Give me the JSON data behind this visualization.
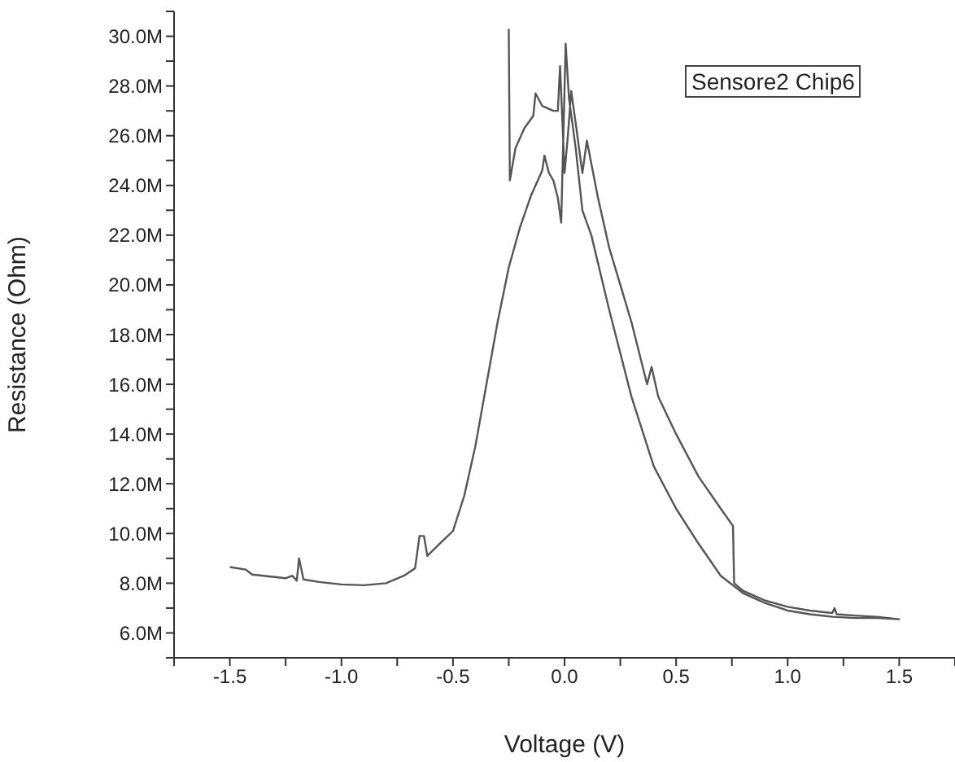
{
  "chart_data": {
    "type": "line",
    "xlabel": "Voltage (V)",
    "ylabel": "Resistance (Ohm)",
    "annotations": [
      "Sensore2 Chip6"
    ],
    "xlim": [
      -1.75,
      1.75
    ],
    "xticks": [
      {
        "value": -1.75,
        "label": null
      },
      -1.5,
      {
        "value": -1.25,
        "label": null
      },
      {
        "value": -1.0,
        "label": "-1.0"
      },
      {
        "value": -0.75,
        "label": null
      },
      -0.5,
      {
        "value": -0.25,
        "label": null
      },
      {
        "value": 0,
        "label": "0.0"
      },
      {
        "value": 0.25,
        "label": null
      },
      0.5,
      {
        "value": 0.75,
        "label": null
      },
      {
        "value": 1.0,
        "label": "1.0"
      },
      {
        "value": 1.25,
        "label": null
      },
      1.5,
      {
        "value": 1.75,
        "label": null
      }
    ],
    "ylim": [
      5000000,
      31000000
    ],
    "yticks": [
      {
        "value": 5000000,
        "label": null
      },
      {
        "value": 6000000,
        "label": "6.0M"
      },
      {
        "value": 7000000,
        "label": null
      },
      {
        "value": 8000000,
        "label": "8.0M"
      },
      {
        "value": 9000000,
        "label": null
      },
      {
        "value": 10000000,
        "label": "10.0M"
      },
      {
        "value": 11000000,
        "label": null
      },
      {
        "value": 12000000,
        "label": "12.0M"
      },
      {
        "value": 13000000,
        "label": null
      },
      {
        "value": 14000000,
        "label": "14.0M"
      },
      {
        "value": 15000000,
        "label": null
      },
      {
        "value": 16000000,
        "label": "16.0M"
      },
      {
        "value": 17000000,
        "label": null
      },
      {
        "value": 18000000,
        "label": "18.0M"
      },
      {
        "value": 19000000,
        "label": null
      },
      {
        "value": 20000000,
        "label": "20.0M"
      },
      {
        "value": 21000000,
        "label": null
      },
      {
        "value": 22000000,
        "label": "22.0M"
      },
      {
        "value": 23000000,
        "label": null
      },
      {
        "value": 24000000,
        "label": "24.0M"
      },
      {
        "value": 25000000,
        "label": null
      },
      {
        "value": 26000000,
        "label": "26.0M"
      },
      {
        "value": 27000000,
        "label": null
      },
      {
        "value": 28000000,
        "label": "28.0M"
      },
      {
        "value": 29000000,
        "label": null
      },
      {
        "value": 30000000,
        "label": "30.0M"
      },
      {
        "value": 31000000,
        "label": null
      }
    ],
    "marker": "none",
    "line_style": "solid",
    "series": [
      {
        "color": "#555555",
        "x": [
          -1.5,
          -1.43,
          -1.4,
          -1.25,
          -1.22,
          -1.2,
          -1.19,
          -1.17,
          -1.1,
          -1.0,
          -0.9,
          -0.8,
          -0.72,
          -0.67,
          -0.65,
          -0.63,
          -0.615,
          -0.57,
          -0.5,
          -0.45,
          -0.4,
          -0.35,
          -0.3,
          -0.25,
          -0.2,
          -0.15,
          -0.12,
          -0.1,
          -0.09,
          -0.07,
          -0.05,
          -0.03,
          -0.015,
          0.005,
          0.02,
          0.05,
          0.08,
          0.12,
          0.2,
          0.3,
          0.4,
          0.5,
          0.6,
          0.7,
          0.8,
          0.9,
          1.0,
          1.1,
          1.2,
          1.3,
          1.4,
          1.5,
          1.4,
          1.3,
          1.22,
          1.21,
          1.2,
          1.1,
          1.0,
          0.9,
          0.8,
          0.76,
          0.755,
          0.7,
          0.6,
          0.5,
          0.42,
          0.39,
          0.37,
          0.3,
          0.2,
          0.15,
          0.1,
          0.08,
          0.05,
          0.03,
          0.015,
          0.0,
          -0.02,
          -0.03,
          -0.05,
          -0.1,
          -0.13,
          -0.14,
          -0.18,
          -0.22,
          -0.245,
          -0.25
        ],
        "values": [
          8650000,
          8550000,
          8350000,
          8200000,
          8300000,
          8100000,
          9000000,
          8150000,
          8050000,
          7950000,
          7920000,
          8000000,
          8300000,
          8600000,
          9900000,
          9900000,
          9100000,
          9500000,
          10100000,
          11500000,
          13500000,
          16000000,
          18500000,
          20700000,
          22300000,
          23600000,
          24200000,
          24600000,
          25200000,
          24500000,
          24200000,
          23500000,
          22500000,
          29700000,
          27500000,
          25500000,
          23000000,
          22000000,
          19000000,
          15500000,
          12700000,
          11000000,
          9600000,
          8300000,
          7600000,
          7200000,
          6900000,
          6750000,
          6650000,
          6600000,
          6600000,
          6550000,
          6650000,
          6700000,
          6750000,
          7000000,
          6800000,
          6900000,
          7050000,
          7300000,
          7700000,
          8000000,
          10300000,
          11000000,
          12300000,
          14000000,
          15500000,
          16700000,
          16000000,
          18500000,
          21500000,
          23500000,
          25800000,
          24500000,
          26500000,
          27800000,
          26000000,
          24500000,
          28800000,
          27000000,
          27000000,
          27200000,
          27700000,
          26800000,
          26300000,
          25500000,
          24200000,
          30300000
        ]
      }
    ]
  }
}
